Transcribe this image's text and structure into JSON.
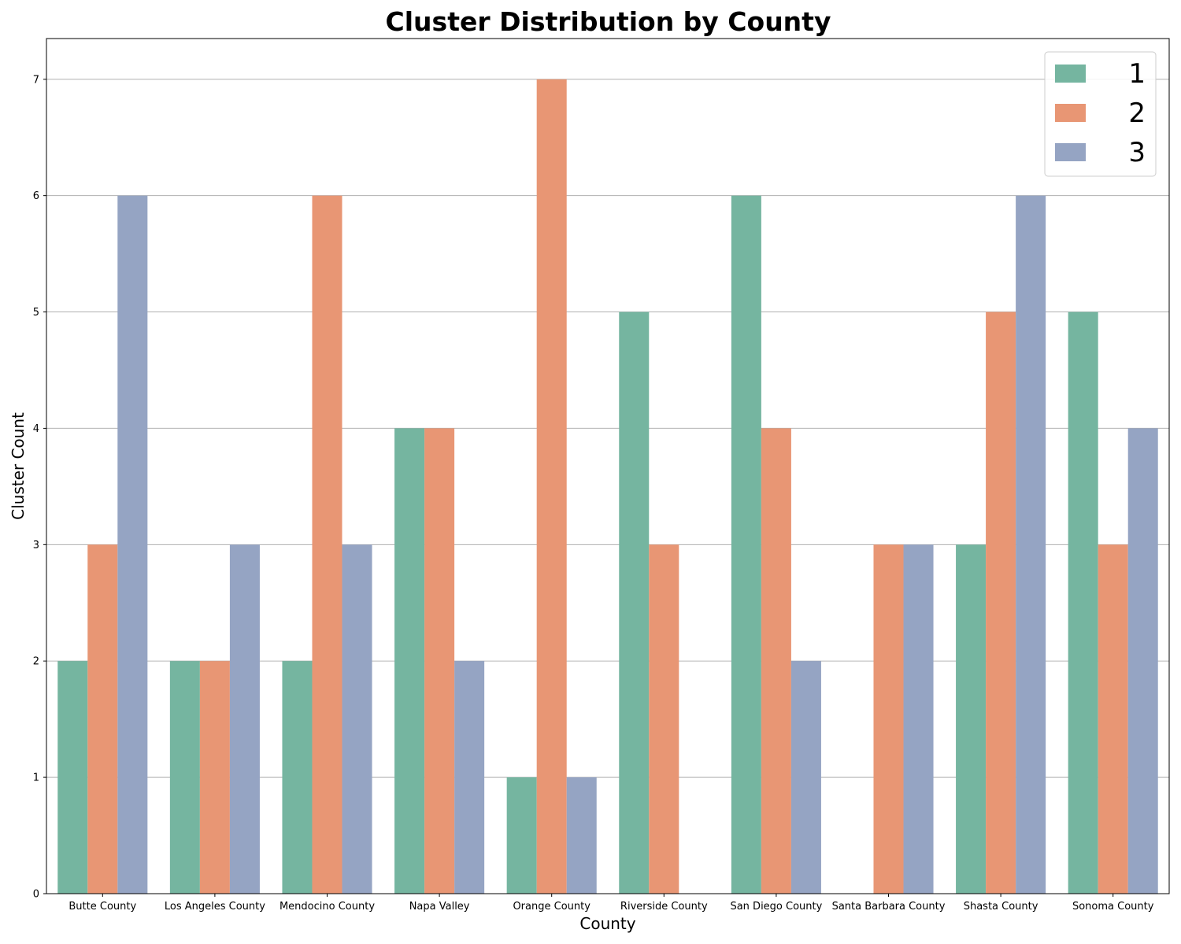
{
  "chart_data": {
    "type": "bar",
    "title": "Cluster Distribution by County",
    "xlabel": "County",
    "ylabel": "Cluster Count",
    "ylim": [
      0,
      7.35
    ],
    "yticks": [
      0,
      1,
      2,
      3,
      4,
      5,
      6,
      7
    ],
    "grid": "y",
    "legend_position": "top-right",
    "categories": [
      "Butte County",
      "Los Angeles County",
      "Mendocino County",
      "Napa Valley",
      "Orange County",
      "Riverside County",
      "San Diego County",
      "Santa Barbara County",
      "Shasta County",
      "Sonoma County"
    ],
    "series": [
      {
        "name": "1",
        "color": "#75b5a0",
        "values": [
          2,
          2,
          2,
          4,
          1,
          5,
          6,
          0,
          3,
          5
        ]
      },
      {
        "name": "2",
        "color": "#e89674",
        "values": [
          3,
          2,
          6,
          4,
          7,
          3,
          4,
          3,
          5,
          3
        ]
      },
      {
        "name": "3",
        "color": "#95a4c3",
        "values": [
          6,
          3,
          3,
          2,
          1,
          0,
          2,
          3,
          6,
          4
        ]
      }
    ]
  }
}
